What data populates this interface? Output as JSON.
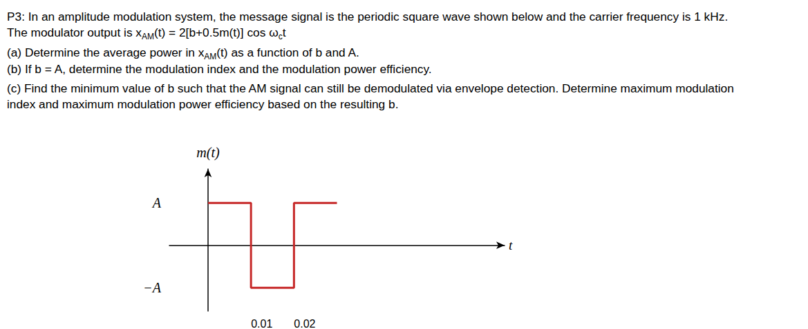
{
  "document": {
    "lines": [
      [
        "P3: In an amplitude modulation system, the message signal is the periodic square wave shown below and the carrier frequency is 1 kHz."
      ],
      [
        "The modulator output is x",
        {
          "sub": "AM"
        },
        "(t) = 2[b+0.5m(t)] cos ω",
        {
          "sub": "c"
        },
        "t"
      ],
      [
        "(a) Determine the average power in x",
        {
          "sub": "AM"
        },
        "(t) as a function of b and A."
      ],
      [
        "(b) If b = A, determine the modulation index and the modulation power efficiency."
      ],
      [
        "(c) Find the minimum value of b such that the AM signal can still be demodulated via envelope detection. Determine maximum modulation"
      ],
      [
        "index and maximum modulation power efficiency based on the resulting b."
      ]
    ]
  },
  "chart_data": {
    "type": "line",
    "xlabel": "t",
    "ylabel": "m(t)",
    "x": [
      0,
      0.01,
      0.01,
      0.02,
      0.02,
      0.03
    ],
    "values": [
      1,
      1,
      -1,
      -1,
      1,
      1
    ],
    "color": "#c62828",
    "xlim": [
      -0.009,
      0.069
    ],
    "ylim": [
      -1.55,
      1.8
    ],
    "xticks": [
      0.01,
      0.02
    ],
    "yticks": [
      {
        "value": 1,
        "label": "A"
      },
      {
        "value": -1,
        "label": "−A"
      }
    ],
    "grid": false
  }
}
